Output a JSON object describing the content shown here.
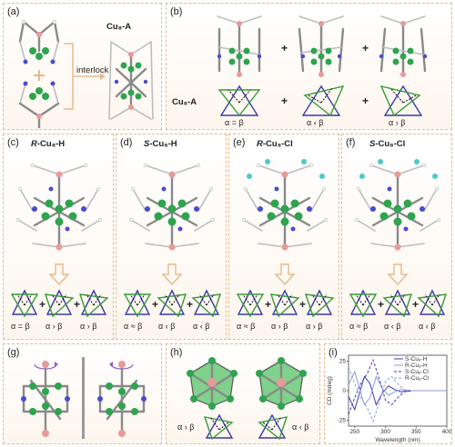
{
  "panels": {
    "a": {
      "label": "(a)",
      "title": "Cu₈-A",
      "interlock": "interlock"
    },
    "b": {
      "label": "(b)",
      "row_label": "Cu₈-A",
      "alphas": [
        "α = β",
        "α ‹ β",
        "α › β"
      ]
    },
    "c": {
      "label": "(c)",
      "title_prefix": "R-",
      "title_main": "Cu₈-H",
      "alphas": [
        "α = β",
        "α › β",
        "α › β"
      ]
    },
    "d": {
      "label": "(d)",
      "title_prefix": "S-",
      "title_main": "Cu₈-H",
      "alphas": [
        "α ≈ β",
        "α ‹ β",
        "α ‹ β"
      ]
    },
    "e": {
      "label": "(e)",
      "title_prefix": "R-",
      "title_main": "Cu₈-Cl",
      "alphas": [
        "α ≈ β",
        "α › β",
        "α › β"
      ]
    },
    "f": {
      "label": "(f)",
      "title_prefix": "S-",
      "title_main": "Cu₈-Cl",
      "alphas": [
        "α ≈ β",
        "α ‹ β",
        "α ‹ β"
      ]
    },
    "g": {
      "label": "(g)"
    },
    "h": {
      "label": "(h)",
      "alphas": [
        "α › β",
        "α ‹ β"
      ]
    },
    "i": {
      "label": "(i)"
    }
  },
  "plus_sign": "+",
  "colors": {
    "copper": "#2ea44f",
    "nitrogen": "#4a4ad0",
    "boron": "#e89a9a",
    "frame": "#8a8a8a",
    "border": "#e8b98a",
    "chlorine": "#4fc8c8"
  },
  "chart_data": {
    "type": "line",
    "xlabel": "Wavelength (nm)",
    "ylabel": "CD (mdeg)",
    "xlim": [
      240,
      400
    ],
    "ylim": [
      -30,
      30
    ],
    "xticks": [
      250,
      300,
      350,
      400
    ],
    "yticks": [
      -25,
      0,
      25
    ],
    "series": [
      {
        "name": "S-Cu₈-H",
        "color": "#3b3bb8",
        "dash": "none",
        "x": [
          240,
          250,
          258,
          266,
          275,
          285,
          295,
          305,
          315,
          325,
          340,
          360,
          400
        ],
        "y": [
          -5,
          -16,
          -2,
          12,
          6,
          -12,
          -2,
          4,
          1,
          -1,
          0,
          0,
          0
        ]
      },
      {
        "name": "R-Cu₈-H",
        "color": "#8d9be0",
        "dash": "none",
        "x": [
          240,
          250,
          258,
          266,
          275,
          285,
          295,
          305,
          315,
          325,
          340,
          360,
          400
        ],
        "y": [
          5,
          16,
          2,
          -12,
          -6,
          12,
          2,
          -4,
          -1,
          1,
          0,
          0,
          0
        ]
      },
      {
        "name": "S-Cu₈-Cl",
        "color": "#3b3bb8",
        "dash": "3 2",
        "x": [
          240,
          250,
          260,
          270,
          280,
          290,
          300,
          310,
          320,
          330,
          345,
          360,
          400
        ],
        "y": [
          -20,
          -6,
          6,
          14,
          26,
          10,
          -8,
          -12,
          -6,
          -1,
          0,
          0,
          0
        ]
      },
      {
        "name": "R-Cu₈-Cl",
        "color": "#8aa0c8",
        "dash": "3 2",
        "x": [
          240,
          250,
          260,
          270,
          280,
          290,
          300,
          310,
          320,
          330,
          345,
          360,
          400
        ],
        "y": [
          20,
          6,
          -6,
          -14,
          -26,
          -10,
          8,
          12,
          6,
          1,
          0,
          0,
          0
        ]
      }
    ]
  }
}
